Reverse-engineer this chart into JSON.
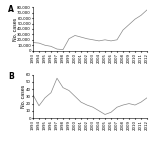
{
  "years": [
    1993,
    1994,
    1995,
    1996,
    1997,
    1998,
    1999,
    2000,
    2001,
    2002,
    2003,
    2004,
    2005,
    2006,
    2007,
    2008,
    2009,
    2010,
    2011,
    2012
  ],
  "cutaneous": [
    15000,
    14000,
    10000,
    8000,
    3000,
    2000,
    22000,
    28000,
    25000,
    22000,
    20000,
    18000,
    20000,
    18000,
    20000,
    38000,
    48000,
    58000,
    65000,
    75000
  ],
  "visceral": [
    32,
    17,
    28,
    35,
    55,
    42,
    38,
    30,
    22,
    18,
    15,
    10,
    5,
    8,
    15,
    18,
    20,
    18,
    22,
    28
  ],
  "panel_A_label": "A",
  "panel_B_label": "B",
  "ylabel_A": "No. cases",
  "ylabel_B": "No. cases",
  "ylim_A": [
    0,
    80000
  ],
  "ylim_B": [
    0,
    60
  ],
  "yticks_A": [
    0,
    10000,
    20000,
    30000,
    40000,
    50000,
    60000,
    70000,
    80000
  ],
  "yticks_B": [
    0,
    10,
    20,
    30,
    40,
    50,
    60
  ],
  "line_color": "#888888",
  "background_color": "#ffffff",
  "label_fontsize": 3.5,
  "tick_fontsize": 2.8,
  "panel_label_fontsize": 5.5
}
